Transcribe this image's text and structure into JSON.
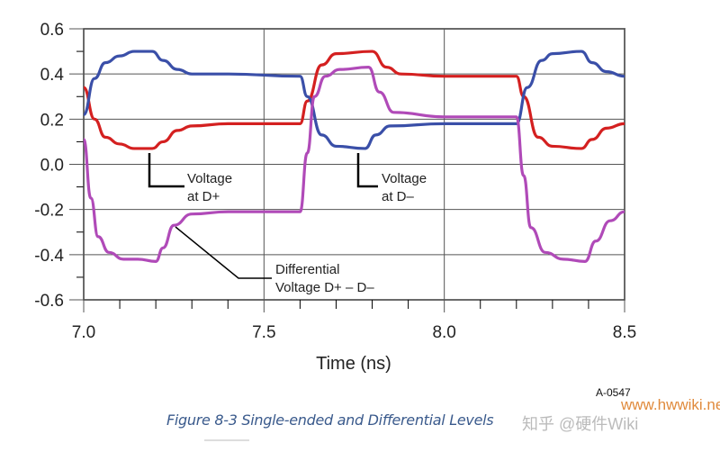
{
  "chart_data": {
    "type": "line",
    "xlabel": "Time (ns)",
    "xlim": [
      7.0,
      8.5
    ],
    "ylim": [
      -0.6,
      0.6
    ],
    "xticks": [
      "7.0",
      "7.5",
      "8.0",
      "8.5"
    ],
    "yticks": [
      "0.6",
      "0.4",
      "0.2",
      "0.0",
      "-0.2",
      "-0.4",
      "-0.6"
    ],
    "grid": true,
    "series": [
      {
        "name": "Voltage at D+",
        "color": "#d42020",
        "x": [
          7.0,
          7.03,
          7.06,
          7.1,
          7.14,
          7.19,
          7.22,
          7.26,
          7.3,
          7.4,
          7.6,
          7.62,
          7.66,
          7.7,
          7.8,
          7.84,
          7.88,
          8.0,
          8.2,
          8.22,
          8.26,
          8.3,
          8.38,
          8.41,
          8.45,
          8.5
        ],
        "y": [
          0.34,
          0.2,
          0.12,
          0.09,
          0.07,
          0.07,
          0.1,
          0.15,
          0.17,
          0.18,
          0.18,
          0.28,
          0.44,
          0.49,
          0.5,
          0.43,
          0.4,
          0.39,
          0.39,
          0.3,
          0.12,
          0.08,
          0.07,
          0.11,
          0.16,
          0.18
        ]
      },
      {
        "name": "Voltage at D-",
        "color": "#3a4fa8",
        "x": [
          7.0,
          7.03,
          7.06,
          7.1,
          7.14,
          7.19,
          7.22,
          7.26,
          7.3,
          7.4,
          7.6,
          7.62,
          7.66,
          7.7,
          7.78,
          7.81,
          7.85,
          8.0,
          8.2,
          8.23,
          8.27,
          8.3,
          8.38,
          8.41,
          8.45,
          8.5
        ],
        "y": [
          0.22,
          0.38,
          0.45,
          0.48,
          0.5,
          0.5,
          0.46,
          0.42,
          0.4,
          0.4,
          0.39,
          0.3,
          0.13,
          0.08,
          0.07,
          0.13,
          0.17,
          0.18,
          0.18,
          0.34,
          0.46,
          0.49,
          0.5,
          0.45,
          0.41,
          0.39
        ]
      },
      {
        "name": "Differential Voltage D+ - D-",
        "color": "#b04ab8",
        "x": [
          7.0,
          7.02,
          7.04,
          7.07,
          7.11,
          7.15,
          7.2,
          7.22,
          7.25,
          7.3,
          7.4,
          7.6,
          7.62,
          7.64,
          7.67,
          7.71,
          7.79,
          7.82,
          7.86,
          8.0,
          8.2,
          8.22,
          8.24,
          8.28,
          8.33,
          8.39,
          8.42,
          8.46,
          8.5
        ],
        "y": [
          0.11,
          -0.15,
          -0.32,
          -0.39,
          -0.42,
          -0.42,
          -0.43,
          -0.37,
          -0.27,
          -0.22,
          -0.21,
          -0.21,
          0.05,
          0.3,
          0.39,
          0.42,
          0.43,
          0.32,
          0.23,
          0.21,
          0.21,
          -0.05,
          -0.28,
          -0.39,
          -0.42,
          -0.43,
          -0.34,
          -0.25,
          -0.21
        ]
      }
    ],
    "annotations": [
      {
        "lines": [
          "Voltage",
          "at D+"
        ]
      },
      {
        "lines": [
          "Voltage",
          "at D–"
        ]
      },
      {
        "lines": [
          "Differential",
          "Voltage D+ – D–"
        ]
      }
    ]
  },
  "figure": {
    "code": "A-0547",
    "caption": "Figure 8-3 Single-ended and Differential Levels"
  },
  "watermark": {
    "url": "www.hwwiki.net",
    "text": "知乎 @硬件Wiki"
  }
}
